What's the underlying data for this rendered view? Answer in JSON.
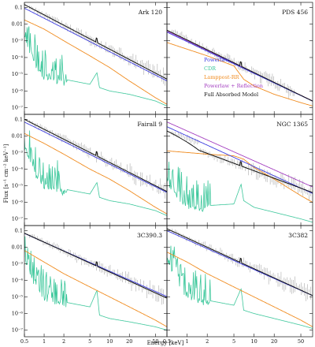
{
  "figure": {
    "x_axis_label": "Energy [keV]",
    "y_axis_label": "Flux [s⁻¹ cm⁻² keV⁻¹]"
  },
  "colors": {
    "powerlaw": "#3a3adf",
    "cdr": "#3cc79b",
    "lamppost": "#f08b1e",
    "reflection": "#a23cbf",
    "full": "#111111",
    "data": "#9a9a9a"
  },
  "legend": [
    {
      "label": "Powerlaw",
      "color": "#3a3adf"
    },
    {
      "label": "CDR",
      "color": "#3cc79b"
    },
    {
      "label": "Lamppost-RR",
      "color": "#f08b1e"
    },
    {
      "label": "Powerlaw + Reflection",
      "color": "#a23cbf"
    },
    {
      "label": "Full Absorbed Model",
      "color": "#111111"
    }
  ],
  "axes": {
    "x_ticks": [
      0.5,
      1,
      2,
      5,
      10,
      20,
      50
    ],
    "x_tick_labels": [
      "0.5",
      "1",
      "2",
      "5",
      "10",
      "20",
      "50"
    ],
    "y_tick_labels": [
      "0.1",
      "0.01",
      "10⁻³",
      "10⁻⁴",
      "10⁻⁵",
      "10⁻⁶",
      "10⁻⁷"
    ],
    "y_tick_exponents": [
      -1,
      -2,
      -3,
      -4,
      -5,
      -6,
      -7
    ]
  },
  "chart_data": [
    {
      "type": "line",
      "title": "Ark 120",
      "x_range": [
        0.5,
        75
      ],
      "y_range": [
        -7.4,
        -0.7
      ],
      "y_log": true,
      "x_log": true,
      "powerlaw": {
        "log_norm": -1.65,
        "slope": -2.0
      },
      "full": {
        "log_norm": -1.45,
        "slope": -2.05
      },
      "reflection": null,
      "lamppost": {
        "points": [
          [
            0.5,
            -1.75
          ],
          [
            1,
            -2.3
          ],
          [
            2,
            -3.0
          ],
          [
            5,
            -3.9
          ],
          [
            10,
            -4.6
          ],
          [
            20,
            -5.4
          ],
          [
            50,
            -6.4
          ],
          [
            75,
            -6.8
          ]
        ]
      },
      "cdr": {
        "points": [
          [
            0.5,
            -2.6
          ],
          [
            0.8,
            -4.6
          ],
          [
            1,
            -5.0
          ],
          [
            2,
            -5.3
          ],
          [
            5,
            -5.6
          ],
          [
            6.4,
            -4.9
          ],
          [
            7,
            -5.8
          ],
          [
            10,
            -6.0
          ],
          [
            20,
            -6.2
          ],
          [
            50,
            -6.6
          ],
          [
            75,
            -6.9
          ]
        ]
      },
      "data_range": [
        0.6,
        70
      ]
    },
    {
      "type": "line",
      "title": "PDS 456",
      "x_range": [
        0.5,
        75
      ],
      "y_range": [
        -7.4,
        -0.7
      ],
      "y_log": true,
      "x_log": true,
      "powerlaw": {
        "log_norm": -3.05,
        "slope": -1.9
      },
      "full": {
        "log_norm": -2.95,
        "slope": -1.95
      },
      "reflection": {
        "log_norm": -3.0,
        "slope": -1.92
      },
      "lamppost": {
        "points": [
          [
            0.5,
            -3.1
          ],
          [
            1,
            -3.5
          ],
          [
            2,
            -3.9
          ],
          [
            5,
            -4.5
          ],
          [
            7,
            -5.3
          ],
          [
            10,
            -5.7
          ],
          [
            20,
            -6.2
          ],
          [
            50,
            -6.7
          ],
          [
            75,
            -6.9
          ]
        ]
      },
      "cdr": null,
      "data_range": [
        0.6,
        40
      ]
    },
    {
      "type": "line",
      "title": "Fairall 9",
      "x_range": [
        0.5,
        75
      ],
      "y_range": [
        -7.4,
        -0.7
      ],
      "y_log": true,
      "x_log": true,
      "powerlaw": {
        "log_norm": -1.75,
        "slope": -1.95
      },
      "full": {
        "log_norm": -1.6,
        "slope": -2.0
      },
      "reflection": null,
      "lamppost": {
        "points": [
          [
            0.5,
            -1.85
          ],
          [
            1,
            -2.45
          ],
          [
            2,
            -3.1
          ],
          [
            5,
            -4.0
          ],
          [
            10,
            -4.6
          ],
          [
            20,
            -5.3
          ],
          [
            50,
            -6.3
          ],
          [
            75,
            -6.7
          ]
        ]
      },
      "cdr": {
        "points": [
          [
            0.5,
            -2.5
          ],
          [
            0.8,
            -4.4
          ],
          [
            1,
            -4.8
          ],
          [
            2,
            -5.2
          ],
          [
            5,
            -5.5
          ],
          [
            6.4,
            -4.8
          ],
          [
            7,
            -5.7
          ],
          [
            10,
            -5.9
          ],
          [
            20,
            -6.1
          ],
          [
            50,
            -6.5
          ],
          [
            75,
            -6.8
          ]
        ]
      },
      "data_range": [
        0.6,
        70
      ]
    },
    {
      "type": "line",
      "title": "NGC 1365",
      "x_range": [
        0.5,
        75
      ],
      "y_range": [
        -7.4,
        -0.7
      ],
      "y_log": true,
      "x_log": true,
      "powerlaw": {
        "log_norm": -2.0,
        "slope": -1.85
      },
      "full": {
        "log_norm": -2.6,
        "slope": -1.5
      },
      "reflection": {
        "log_norm": -1.7,
        "slope": -1.8
      },
      "lamppost": {
        "points": [
          [
            0.5,
            -2.9
          ],
          [
            1,
            -3.0
          ],
          [
            2,
            -3.1
          ],
          [
            5,
            -3.2
          ],
          [
            7,
            -3.4
          ],
          [
            10,
            -3.9
          ],
          [
            20,
            -4.6
          ],
          [
            50,
            -5.6
          ],
          [
            75,
            -6.0
          ]
        ]
      },
      "cdr": {
        "points": [
          [
            0.5,
            -4.6
          ],
          [
            0.8,
            -5.6
          ],
          [
            1,
            -6.0
          ],
          [
            2,
            -6.2
          ],
          [
            5,
            -6.1
          ],
          [
            6.4,
            -4.9
          ],
          [
            7,
            -5.9
          ],
          [
            10,
            -6.3
          ],
          [
            20,
            -6.6
          ],
          [
            50,
            -7.0
          ],
          [
            75,
            -7.2
          ]
        ]
      },
      "data_range": [
        0.6,
        70
      ]
    },
    {
      "type": "line",
      "title": "3C390.3",
      "x_range": [
        0.5,
        75
      ],
      "y_range": [
        -7.4,
        -0.7
      ],
      "y_log": true,
      "x_log": true,
      "powerlaw": {
        "log_norm": -1.7,
        "slope": -1.75
      },
      "full": {
        "log_norm": -1.7,
        "slope": -1.8
      },
      "reflection": null,
      "lamppost": {
        "points": [
          [
            0.5,
            -2.2
          ],
          [
            1,
            -2.9
          ],
          [
            2,
            -3.6
          ],
          [
            5,
            -4.4
          ],
          [
            10,
            -5.0
          ],
          [
            20,
            -5.6
          ],
          [
            50,
            -6.4
          ],
          [
            75,
            -6.8
          ]
        ]
      },
      "cdr": {
        "points": [
          [
            0.5,
            -2.6
          ],
          [
            0.8,
            -4.4
          ],
          [
            1,
            -4.9
          ],
          [
            2,
            -5.3
          ],
          [
            5,
            -5.6
          ],
          [
            6.4,
            -4.6
          ],
          [
            7,
            -6.1
          ],
          [
            10,
            -6.3
          ],
          [
            20,
            -6.5
          ],
          [
            50,
            -6.8
          ],
          [
            75,
            -7.0
          ]
        ]
      },
      "data_range": [
        0.6,
        70
      ]
    },
    {
      "type": "line",
      "title": "3C382",
      "x_range": [
        0.5,
        75
      ],
      "y_range": [
        -7.4,
        -0.7
      ],
      "y_log": true,
      "x_log": true,
      "powerlaw": {
        "log_norm": -1.55,
        "slope": -1.8
      },
      "full": {
        "log_norm": -1.45,
        "slope": -1.85
      },
      "reflection": null,
      "lamppost": {
        "points": [
          [
            0.5,
            -2.3
          ],
          [
            1,
            -2.9
          ],
          [
            2,
            -3.6
          ],
          [
            5,
            -4.4
          ],
          [
            10,
            -5.0
          ],
          [
            20,
            -5.6
          ],
          [
            50,
            -6.4
          ],
          [
            75,
            -6.8
          ]
        ]
      },
      "cdr": {
        "points": [
          [
            0.5,
            -2.4
          ],
          [
            0.8,
            -4.4
          ],
          [
            1,
            -4.8
          ],
          [
            2,
            -5.2
          ],
          [
            5,
            -5.5
          ],
          [
            6.4,
            -4.5
          ],
          [
            7,
            -5.8
          ],
          [
            10,
            -6.0
          ],
          [
            20,
            -6.3
          ],
          [
            50,
            -6.7
          ],
          [
            75,
            -6.9
          ]
        ]
      },
      "data_range": [
        0.6,
        70
      ]
    }
  ]
}
